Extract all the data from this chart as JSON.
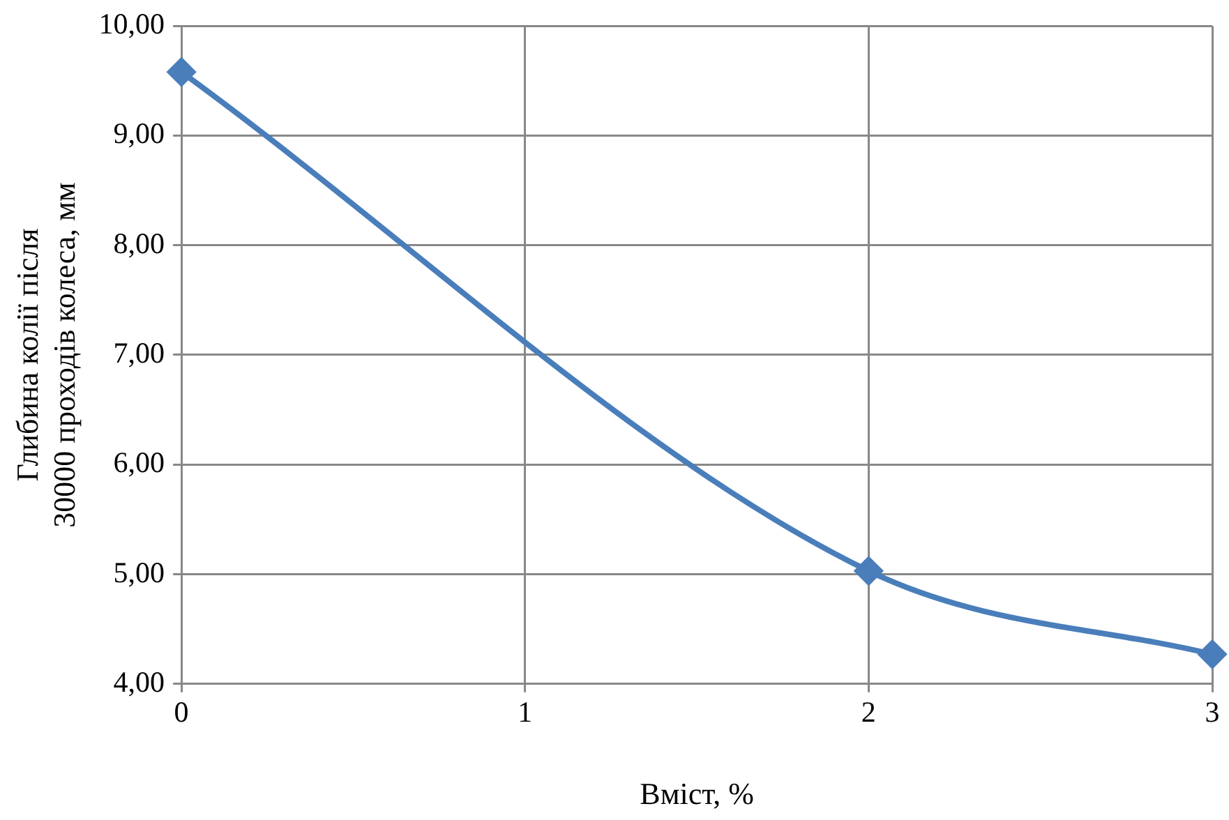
{
  "chart_data": {
    "type": "line",
    "xlabel": "Вміст, %",
    "ylabel": "Глибина колії після\n30000 проходів колеса, мм",
    "x": [
      0,
      2,
      3
    ],
    "series": [
      {
        "color": "#4a7ebb",
        "values": [
          9.58,
          5.03,
          4.27
        ]
      }
    ],
    "xlim": [
      0,
      3
    ],
    "xticks": [
      0,
      1,
      2,
      3
    ],
    "ylim": [
      4,
      10
    ],
    "yticks": [
      {
        "value": 4,
        "label": "4,00"
      },
      {
        "value": 5,
        "label": "5,00"
      },
      {
        "value": 6,
        "label": "6,00"
      },
      {
        "value": 7,
        "label": "7,00"
      },
      {
        "value": 8,
        "label": "8,00"
      },
      {
        "value": 9,
        "label": "9,00"
      },
      {
        "value": 10,
        "label": "10,00"
      }
    ],
    "grid": true,
    "legend": false,
    "marker": "diamond",
    "line_style": "solid"
  }
}
